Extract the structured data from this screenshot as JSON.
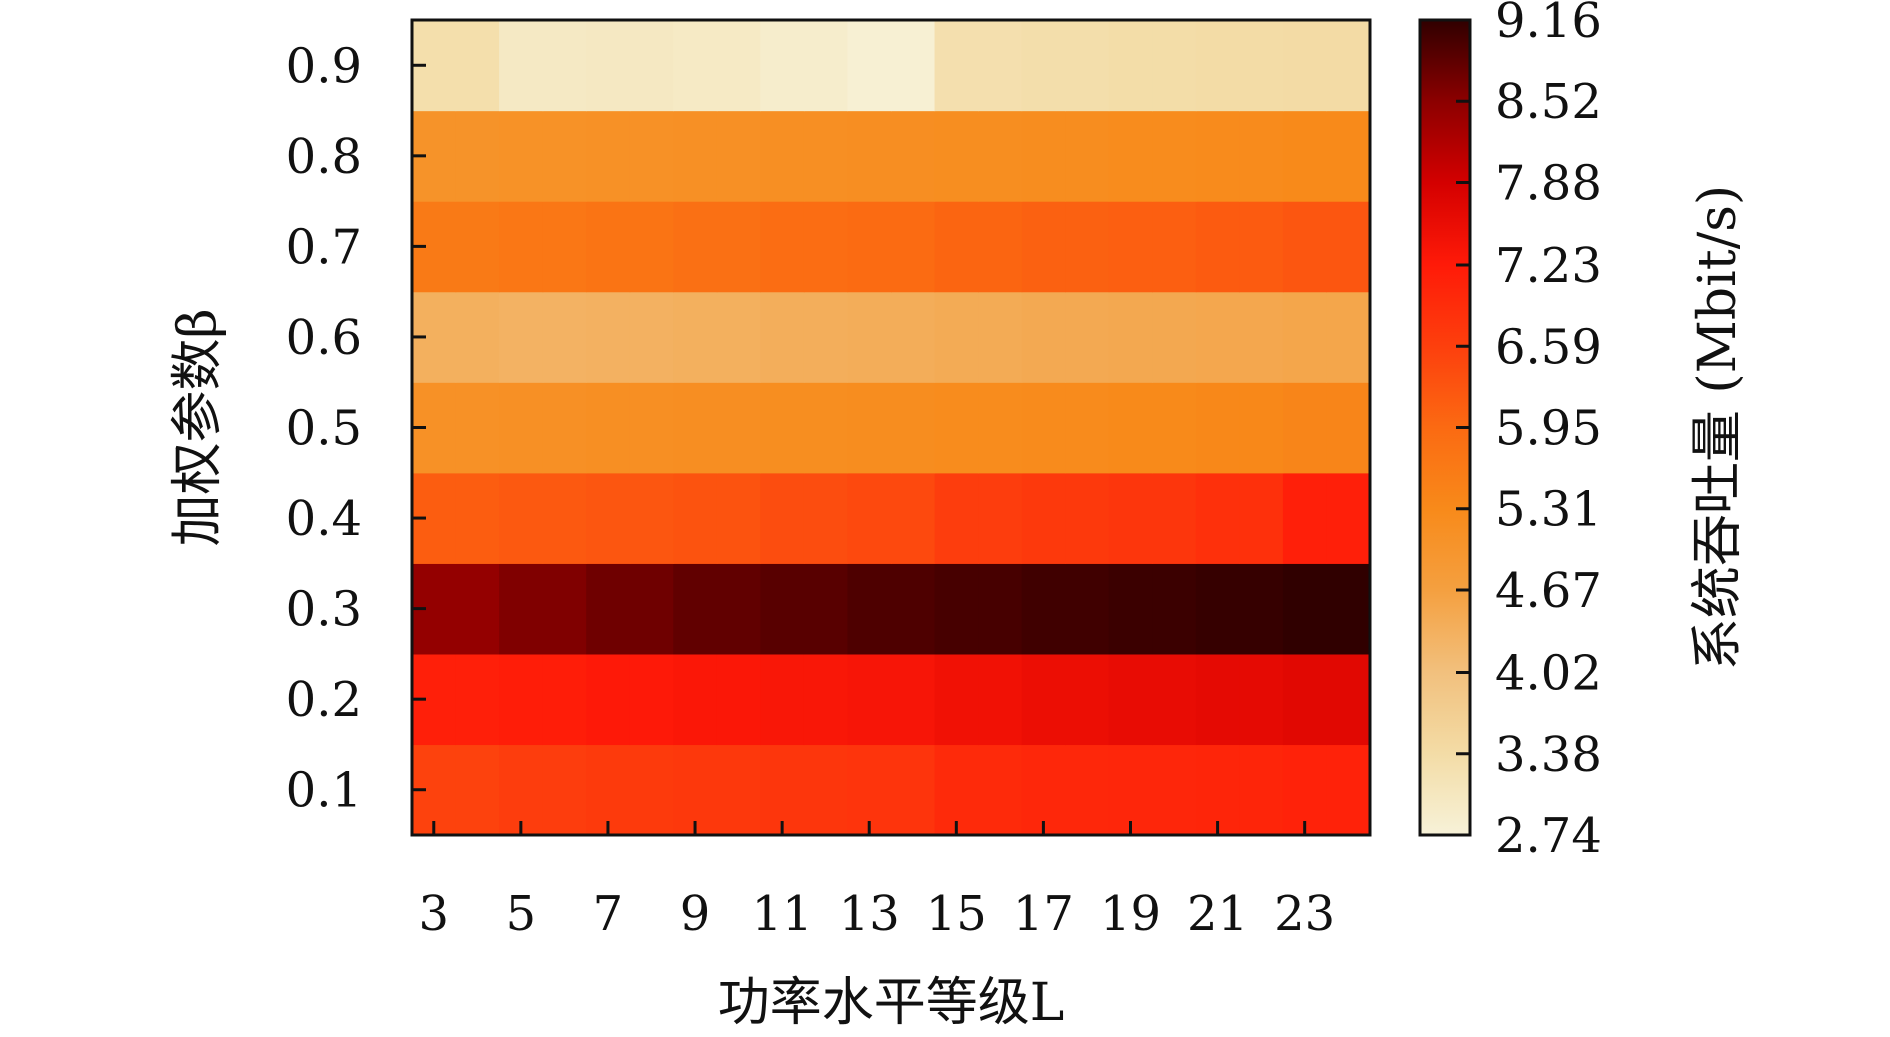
{
  "chart_data": {
    "type": "heatmap",
    "xlabel": "功率水平等级L",
    "ylabel": "加权参数β",
    "colorbar_label": "系统吞吐量 (Mbit/s)",
    "x": [
      3,
      4,
      5,
      6,
      7,
      8,
      9,
      10,
      11,
      12,
      13,
      14,
      15,
      16,
      17,
      18,
      19,
      20,
      21,
      22,
      23,
      24
    ],
    "x_ticks": [
      3,
      5,
      7,
      9,
      11,
      13,
      15,
      17,
      19,
      21,
      23
    ],
    "y": [
      0.1,
      0.2,
      0.3,
      0.4,
      0.5,
      0.6,
      0.7,
      0.8,
      0.9
    ],
    "y_ticks": [
      0.1,
      0.2,
      0.3,
      0.4,
      0.5,
      0.6,
      0.7,
      0.8,
      0.9
    ],
    "z_range": [
      2.74,
      9.16
    ],
    "colorbar_ticks": [
      2.74,
      3.38,
      4.02,
      4.67,
      5.31,
      5.95,
      6.59,
      7.23,
      7.88,
      8.52,
      9.16
    ],
    "colorscale": [
      "#f7f2d8",
      "#f3dca6",
      "#f2c07d",
      "#f4a040",
      "#f88a1a",
      "#fb6a12",
      "#fd3f0d",
      "#ff1a08",
      "#d40000",
      "#8c0000",
      "#300000"
    ],
    "values": [
      [
        6.55,
        6.55,
        6.62,
        6.62,
        6.68,
        6.68,
        6.72,
        6.72,
        6.75,
        6.75,
        6.78,
        6.78,
        6.95,
        6.95,
        7.0,
        7.0,
        7.02,
        7.02,
        7.05,
        7.05,
        7.1,
        7.1
      ],
      [
        7.15,
        7.15,
        7.18,
        7.18,
        7.25,
        7.25,
        7.3,
        7.3,
        7.32,
        7.32,
        7.35,
        7.35,
        7.45,
        7.45,
        7.52,
        7.52,
        7.58,
        7.58,
        7.62,
        7.62,
        7.68,
        7.68
      ],
      [
        8.45,
        8.45,
        8.6,
        8.6,
        8.72,
        8.72,
        8.82,
        8.82,
        8.88,
        8.88,
        8.95,
        8.95,
        9.0,
        9.0,
        9.05,
        9.05,
        9.08,
        9.08,
        9.12,
        9.12,
        9.16,
        9.16
      ],
      [
        6.15,
        6.15,
        6.2,
        6.2,
        6.25,
        6.25,
        6.3,
        6.3,
        6.38,
        6.38,
        6.45,
        6.45,
        6.62,
        6.62,
        6.7,
        6.7,
        6.75,
        6.75,
        6.85,
        6.85,
        7.15,
        7.15
      ],
      [
        5.1,
        5.1,
        5.12,
        5.12,
        5.15,
        5.15,
        5.18,
        5.18,
        5.2,
        5.2,
        5.22,
        5.22,
        5.25,
        5.25,
        5.28,
        5.28,
        5.3,
        5.3,
        5.35,
        5.35,
        5.4,
        5.4
      ],
      [
        4.35,
        4.35,
        4.3,
        4.3,
        4.32,
        4.32,
        4.35,
        4.35,
        4.38,
        4.38,
        4.4,
        4.4,
        4.45,
        4.45,
        4.48,
        4.48,
        4.5,
        4.5,
        4.52,
        4.52,
        4.55,
        4.55
      ],
      [
        5.62,
        5.62,
        5.68,
        5.68,
        5.75,
        5.75,
        5.82,
        5.82,
        5.88,
        5.88,
        5.92,
        5.92,
        6.02,
        6.02,
        6.08,
        6.08,
        6.12,
        6.12,
        6.18,
        6.18,
        6.25,
        6.25
      ],
      [
        5.05,
        5.05,
        5.08,
        5.08,
        5.1,
        5.1,
        5.12,
        5.12,
        5.15,
        5.15,
        5.18,
        5.18,
        5.2,
        5.2,
        5.22,
        5.22,
        5.25,
        5.25,
        5.28,
        5.28,
        5.3,
        5.3
      ],
      [
        3.3,
        3.3,
        3.0,
        3.0,
        3.02,
        3.02,
        2.98,
        2.98,
        2.9,
        2.9,
        2.8,
        2.8,
        3.28,
        3.28,
        3.32,
        3.32,
        3.35,
        3.35,
        3.38,
        3.38,
        3.4,
        3.4
      ]
    ]
  }
}
